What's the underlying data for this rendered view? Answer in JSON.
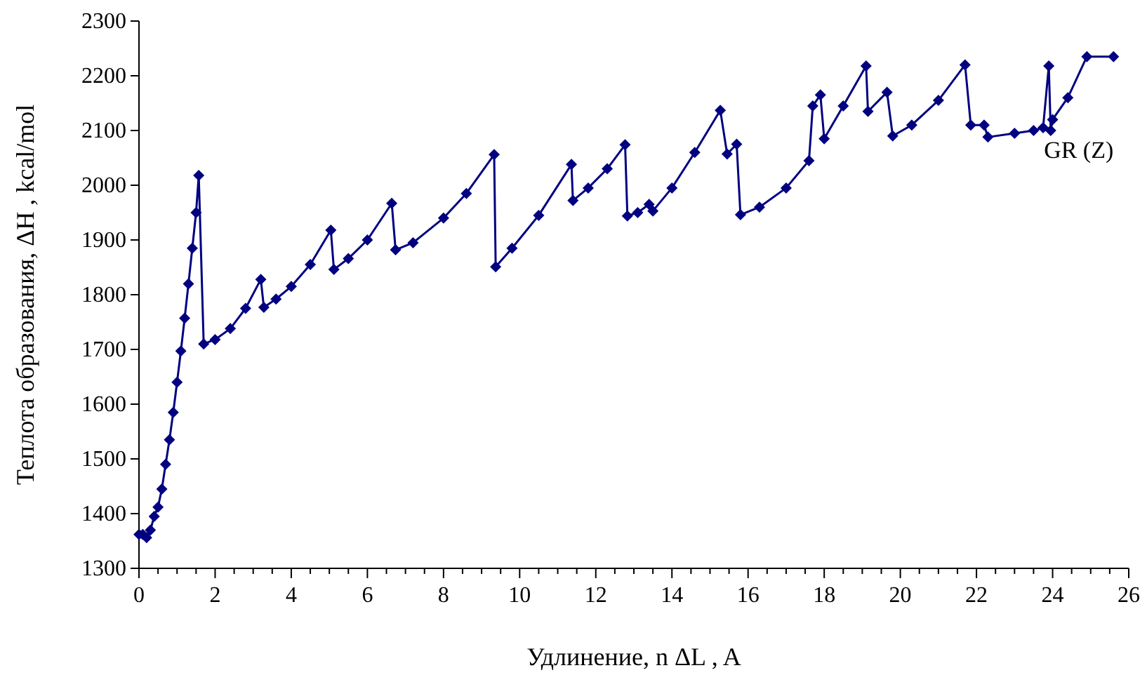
{
  "chart_data": {
    "type": "line",
    "xlabel": "Удлинение, n ΔL , A",
    "ylabel": "Теплота образования, ΔH , kcal/mol",
    "xlim": [
      0,
      26
    ],
    "ylim": [
      1300,
      2300
    ],
    "xticks": [
      0,
      {
        "value": 0.5,
        "label": null
      },
      {
        "value": 1,
        "label": null
      },
      {
        "value": 1.5,
        "label": null
      },
      2,
      {
        "value": 2.5,
        "label": null
      },
      {
        "value": 3,
        "label": null
      },
      {
        "value": 3.5,
        "label": null
      },
      4,
      {
        "value": 4.5,
        "label": null
      },
      {
        "value": 5,
        "label": null
      },
      {
        "value": 5.5,
        "label": null
      },
      6,
      {
        "value": 6.5,
        "label": null
      },
      {
        "value": 7,
        "label": null
      },
      {
        "value": 7.5,
        "label": null
      },
      8,
      {
        "value": 8.5,
        "label": null
      },
      {
        "value": 9,
        "label": null
      },
      {
        "value": 9.5,
        "label": null
      },
      10,
      {
        "value": 10.5,
        "label": null
      },
      {
        "value": 11,
        "label": null
      },
      {
        "value": 11.5,
        "label": null
      },
      12,
      {
        "value": 12.5,
        "label": null
      },
      {
        "value": 13,
        "label": null
      },
      {
        "value": 13.5,
        "label": null
      },
      14,
      {
        "value": 14.5,
        "label": null
      },
      {
        "value": 15,
        "label": null
      },
      {
        "value": 15.5,
        "label": null
      },
      16,
      {
        "value": 16.5,
        "label": null
      },
      {
        "value": 17,
        "label": null
      },
      {
        "value": 17.5,
        "label": null
      },
      18,
      {
        "value": 18.5,
        "label": null
      },
      {
        "value": 19,
        "label": null
      },
      {
        "value": 19.5,
        "label": null
      },
      20,
      {
        "value": 20.5,
        "label": null
      },
      {
        "value": 21,
        "label": null
      },
      {
        "value": 21.5,
        "label": null
      },
      22,
      {
        "value": 22.5,
        "label": null
      },
      {
        "value": 23,
        "label": null
      },
      {
        "value": 23.5,
        "label": null
      },
      24,
      {
        "value": 24.5,
        "label": null
      },
      {
        "value": 25,
        "label": null
      },
      {
        "value": 25.5,
        "label": null
      },
      26
    ],
    "yticks": [
      1300,
      1400,
      1500,
      1600,
      1700,
      1800,
      1900,
      2000,
      2100,
      2200,
      2300
    ],
    "grid": false,
    "legend": false,
    "marker": "diamond",
    "line_style": "solid",
    "series": [
      {
        "name": "GR (Z)",
        "color": "#000080",
        "x": [
          0,
          0.1,
          0.2,
          0.3,
          0.4,
          0.5,
          0.6,
          0.7,
          0.8,
          0.9,
          1.0,
          1.1,
          1.2,
          1.3,
          1.4,
          1.5,
          1.57,
          1.7,
          2.0,
          2.4,
          2.8,
          3.2,
          3.28,
          3.6,
          4.0,
          4.5,
          5.04,
          5.12,
          5.5,
          6.0,
          6.64,
          6.74,
          7.2,
          8.0,
          8.6,
          9.33,
          9.37,
          9.8,
          10.5,
          11.36,
          11.4,
          11.8,
          12.3,
          12.77,
          12.83,
          13.1,
          13.4,
          13.5,
          14.0,
          14.6,
          15.27,
          15.45,
          15.7,
          15.8,
          16.3,
          17.0,
          17.6,
          17.7,
          17.9,
          18.0,
          18.5,
          19.1,
          19.15,
          19.65,
          19.8,
          20.3,
          21.0,
          21.7,
          21.85,
          22.2,
          22.3,
          23.0,
          23.5,
          23.75,
          23.9,
          23.95,
          24.0,
          24.4,
          24.9,
          25.6
        ],
        "values": [
          1362,
          1362,
          1356,
          1370,
          1395,
          1412,
          1445,
          1490,
          1535,
          1585,
          1640,
          1697,
          1757,
          1820,
          1885,
          1950,
          2018,
          1710,
          1718,
          1738,
          1775,
          1828,
          1777,
          1792,
          1815,
          1855,
          1918,
          1846,
          1866,
          1900,
          1967,
          1882,
          1895,
          1940,
          1985,
          2056,
          1851,
          1885,
          1945,
          2038,
          1972,
          1995,
          2030,
          2074,
          1944,
          1950,
          1965,
          1953,
          1995,
          2060,
          2137,
          2057,
          2075,
          1946,
          1960,
          1995,
          2045,
          2145,
          2165,
          2085,
          2145,
          2218,
          2135,
          2170,
          2090,
          2110,
          2155,
          2220,
          2110,
          2110,
          2088,
          2095,
          2100,
          2105,
          2218,
          2100,
          2120,
          2160,
          2235,
          2235
        ]
      }
    ]
  }
}
